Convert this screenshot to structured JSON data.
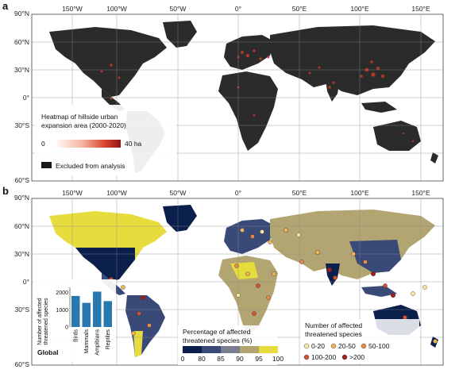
{
  "panel_a": {
    "letter": "a",
    "lat_ticks": [
      "90°N",
      "60°N",
      "30°N",
      "0°",
      "30°S",
      "60°S"
    ],
    "lon_ticks": [
      "150°W",
      "100°W",
      "50°W",
      "0°",
      "50°E",
      "100°E",
      "150°E"
    ],
    "legend_title_line1": "Heatmap of hillside urban",
    "legend_title_line2": "expansion area (2000-2020)",
    "legend_min": "0",
    "legend_max": "40 ha",
    "excluded_label": "Excluded from analysis",
    "colors": {
      "land": "#2b2b2b",
      "ocean": "#ffffff",
      "heat_low": "#fbe3da",
      "heat_high": "#9e1b1b"
    }
  },
  "panel_b": {
    "letter": "b",
    "lat_ticks": [
      "90°N",
      "60°N",
      "30°N",
      "0°",
      "30°S",
      "60°S"
    ],
    "lon_ticks": [
      "150°W",
      "100°W",
      "50°W",
      "0°",
      "50°E",
      "100°E",
      "150°E"
    ],
    "pct_legend_title_line1": "Percentage of affected",
    "pct_legend_title_line2": "threatened species (%)",
    "pct_legend_ticks": [
      "0",
      "80",
      "85",
      "90",
      "95",
      "100"
    ],
    "pct_colors": [
      "#0b1f4d",
      "#3a4a78",
      "#7a7f8f",
      "#b3a572",
      "#e7dc3d"
    ],
    "species_legend_title_line1": "Number of affected",
    "species_legend_title_line2": "threatened species",
    "species_classes": [
      {
        "label": "0-20",
        "color": "#f2e6a0"
      },
      {
        "label": "20-50",
        "color": "#f0b458"
      },
      {
        "label": "50-100",
        "color": "#e68a4a"
      },
      {
        "label": "100-200",
        "color": "#cf5330"
      },
      {
        "label": ">200",
        "color": "#a01d1d"
      }
    ]
  },
  "inset": {
    "ylabel_line1": "Number of affected",
    "ylabel_line2": "threatened species",
    "y_ticks": [
      "0",
      "1000",
      "2000"
    ],
    "title": "Global",
    "bar_color": "#2a78b0"
  },
  "chart_data": {
    "type": "bar",
    "title": "Global",
    "categories": [
      "Birds",
      "Mammals",
      "Ampibians",
      "Reptiles"
    ],
    "values": [
      1800,
      1400,
      2050,
      1500
    ],
    "ylabel": "Number of affected threatened species",
    "ylim": [
      0,
      2300
    ]
  }
}
